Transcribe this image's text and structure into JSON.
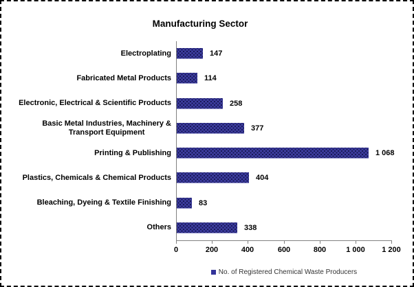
{
  "title": "Manufacturing Sector",
  "legend": {
    "label": "No. of Registered Chemical Waste Producers",
    "marker_color": "#333399"
  },
  "colors": {
    "bar_fill": "#3c3c9e",
    "bar_dot_pattern": "#14144e",
    "axis_line": "#808080",
    "label_text": "#000000",
    "legend_text": "#333333",
    "background": "#ffffff",
    "frame_border": "#000000"
  },
  "chart_data": {
    "type": "bar",
    "orientation": "horizontal",
    "title": "Manufacturing Sector",
    "categories": [
      "Electroplating",
      "Fabricated Metal Products",
      "Electronic, Electrical & Scientific Products",
      "Basic Metal Industries, Machinery &\nTransport Equipment",
      "Printing & Publishing",
      "Plastics, Chemicals & Chemical Products",
      "Bleaching, Dyeing & Textile Finishing",
      "Others"
    ],
    "values": [
      147,
      114,
      258,
      377,
      1068,
      404,
      83,
      338
    ],
    "value_labels": [
      "147",
      "114",
      "258",
      "377",
      "1 068",
      "404",
      "83",
      "338"
    ],
    "x_ticks": [
      "0",
      "200",
      "400",
      "600",
      "800",
      "1 000",
      "1 200"
    ],
    "xlim": [
      0,
      1200
    ],
    "xlabel": "",
    "ylabel": "",
    "grid": false,
    "legend_entries": [
      "No. of Registered Chemical Waste Producers"
    ],
    "legend_position": "bottom-center"
  }
}
